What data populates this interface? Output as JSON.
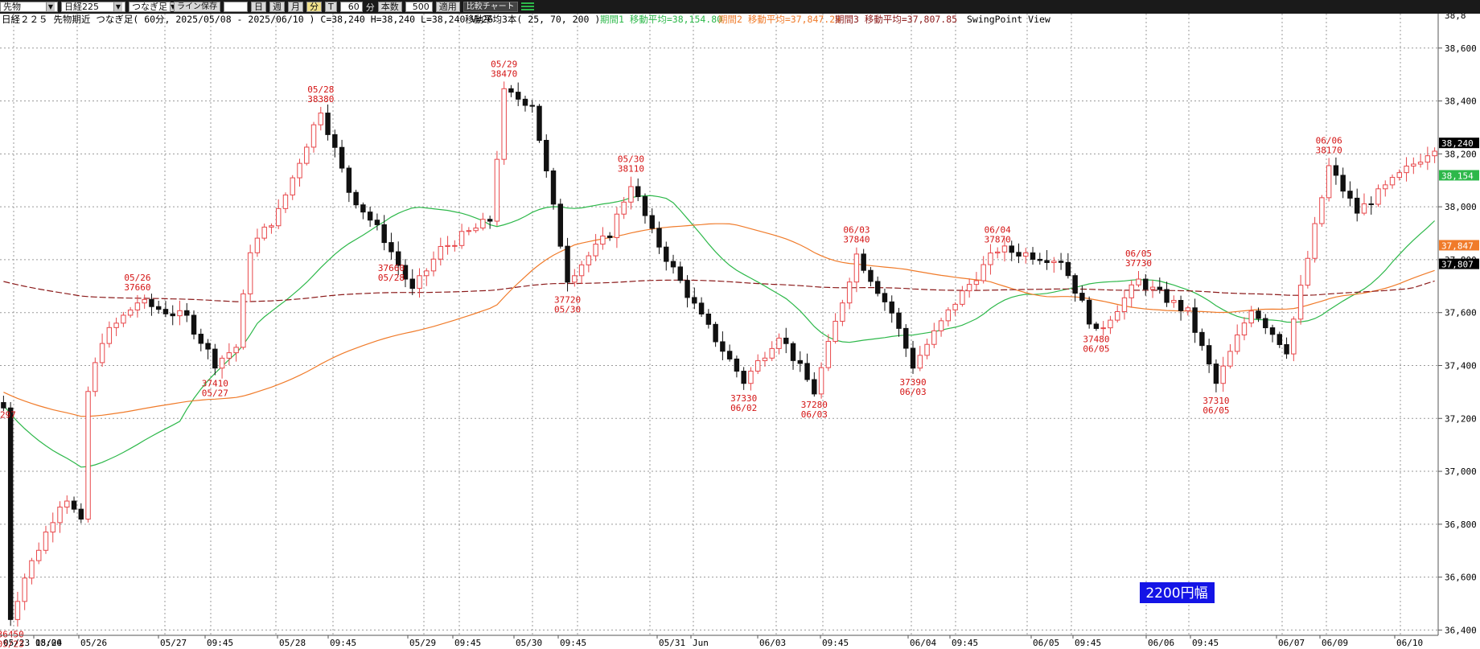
{
  "toolbar": {
    "market": "先物",
    "symbol": "日経225",
    "chart_kind": "つなぎ足",
    "save_line": "ライン保存",
    "period_buttons": [
      "日",
      "週",
      "月",
      "分",
      "T"
    ],
    "interval_value": "60",
    "interval_unit": "分",
    "count_label": "本数",
    "count_value": "500",
    "apply": "適用",
    "compare": "比較チャート"
  },
  "header": {
    "info": "日経２２５ 先物期近 つなぎ足( 60分, 2025/05/08 - 2025/06/10 )  C=38,240 H=38,240 L=38,240 V=26",
    "ma_title": "移動平均3本( 25, 70, 200 )",
    "ma1": "期間1 移動平均=38,154.80",
    "ma2": "期間2 移動平均=37,847.29",
    "ma3": "期間3 移動平均=37,807.85",
    "view": "SwingPoint View"
  },
  "range_badge": "2200円幅",
  "colors": {
    "up": "#e8474a",
    "down": "#111111",
    "ma1": "#2db84a",
    "ma2": "#f07b2a",
    "ma3": "#8b1a1a",
    "swing_text": "#d41414",
    "badge_bg": "#1414e6",
    "grid": "#9a9a9a"
  },
  "chart_data": {
    "type": "candlestick",
    "x_labels": [
      "05/23 18:00",
      "05/24",
      "05/26",
      "05/27",
      "09:45",
      "05/28",
      "09:45",
      "05/29",
      "09:45",
      "05/30",
      "09:45",
      "05/31",
      "Jun",
      "06/03",
      "09:45",
      "06/04",
      "09:45",
      "06/05",
      "09:45",
      "06/06",
      "09:45",
      "06/07",
      "06/09",
      "06/10"
    ],
    "y_ticks": [
      36400,
      36600,
      36800,
      37000,
      37200,
      37400,
      37600,
      37800,
      38000,
      38200,
      38400,
      38600
    ],
    "y_range": [
      36380,
      38730
    ],
    "price_tags": {
      "last": 38240,
      "ma1": 38154,
      "ma2": 37847,
      "ma3": 37807
    },
    "price_tag_labels": {
      "last": "38,240",
      "ma1": "38,154",
      "ma2": "37,847",
      "ma3": "37,807"
    },
    "y_axis_top_clip": "38,8",
    "left_edge_clip": "297",
    "swing_points": [
      {
        "value": "36450",
        "date": "05/23",
        "type": "low",
        "at": 1
      },
      {
        "value": "37660",
        "date": "05/26",
        "type": "high",
        "at": 19
      },
      {
        "value": "37410",
        "date": "05/27",
        "type": "low",
        "at": 30
      },
      {
        "value": "38380",
        "date": "05/28",
        "type": "high",
        "at": 45
      },
      {
        "value": "37660",
        "date": "05/28",
        "type": "low",
        "at": 55
      },
      {
        "value": "38470",
        "date": "05/29",
        "type": "high",
        "at": 71
      },
      {
        "value": "37720",
        "date": "05/30",
        "type": "low",
        "at": 80
      },
      {
        "value": "38110",
        "date": "05/30",
        "type": "high",
        "at": 89
      },
      {
        "value": "37330",
        "date": "06/02",
        "type": "low",
        "at": 105
      },
      {
        "value": "37280",
        "date": "06/03",
        "type": "low",
        "at": 115
      },
      {
        "value": "37840",
        "date": "06/03",
        "type": "high",
        "at": 121
      },
      {
        "value": "37390",
        "date": "06/03",
        "type": "low",
        "at": 129
      },
      {
        "value": "37870",
        "date": "06/04",
        "type": "high",
        "at": 141
      },
      {
        "value": "37480",
        "date": "06/05",
        "type": "low",
        "at": 155
      },
      {
        "value": "37730",
        "date": "06/05",
        "type": "high",
        "at": 161
      },
      {
        "value": "37310",
        "date": "06/05",
        "type": "low",
        "at": 172
      },
      {
        "value": "38170",
        "date": "06/06",
        "type": "high",
        "at": 188
      }
    ],
    "series": [
      {
        "name": "期間1",
        "period": 25
      },
      {
        "name": "期間2",
        "period": 70
      },
      {
        "name": "期間3",
        "period": 200
      }
    ]
  }
}
